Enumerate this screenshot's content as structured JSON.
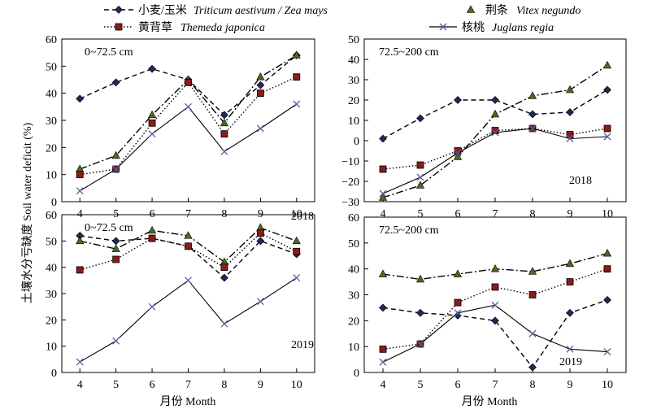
{
  "legend": [
    {
      "series": "wheat_maize",
      "label_cn": "小麦/玉米",
      "label_latin": "Triticum aestivum / Zea mays"
    },
    {
      "series": "vitex",
      "label_cn": "荆条",
      "label_latin": "Vitex negundo"
    },
    {
      "series": "themeda",
      "label_cn": "黄背草",
      "label_latin": "Themeda japonica"
    },
    {
      "series": "juglans",
      "label_cn": "核桃",
      "label_latin": "Juglans regia"
    }
  ],
  "ylabel": "土壤水分亏缺度 Soil water deficit (%)",
  "xlabel": "月份 Month",
  "colors": {
    "axis": "#000000",
    "marker_fill_themeda": "#8b1a1a",
    "marker_fill_vitex": "#4a6b1f",
    "marker_fill_wheat": "#1a2a5a",
    "marker_juglans": "#5a5aa0"
  },
  "chart_data": [
    {
      "id": "p2018_shallow",
      "type": "line",
      "depth": "0~72.5 cm",
      "year": "2018",
      "x": [
        4,
        5,
        6,
        7,
        8,
        9,
        10
      ],
      "ylim": [
        0,
        60
      ],
      "yticks": [
        0,
        10,
        20,
        30,
        40,
        50,
        60
      ],
      "series": [
        {
          "key": "wheat_maize",
          "values": [
            38,
            44,
            49,
            45,
            32,
            43,
            54
          ]
        },
        {
          "key": "vitex",
          "values": [
            12,
            17,
            32,
            45,
            29,
            46,
            54
          ]
        },
        {
          "key": "themeda",
          "values": [
            10,
            12,
            29,
            44,
            25,
            40,
            46
          ]
        },
        {
          "key": "juglans",
          "values": [
            4,
            12,
            25,
            35,
            18.5,
            27,
            36
          ]
        }
      ]
    },
    {
      "id": "p2018_deep",
      "type": "line",
      "depth": "72.5~200 cm",
      "year": "2018",
      "x": [
        4,
        5,
        6,
        7,
        8,
        9,
        10
      ],
      "ylim": [
        -30,
        50
      ],
      "yticks": [
        -30,
        -20,
        -10,
        0,
        10,
        20,
        30,
        40,
        50
      ],
      "series": [
        {
          "key": "wheat_maize",
          "values": [
            1,
            11,
            20,
            20,
            13,
            14,
            25
          ]
        },
        {
          "key": "vitex",
          "values": [
            -28,
            -22,
            -8,
            13,
            22,
            25,
            37
          ]
        },
        {
          "key": "themeda",
          "values": [
            -14,
            -12,
            -5,
            5,
            6,
            3,
            6
          ]
        },
        {
          "key": "juglans",
          "values": [
            -26,
            -18,
            -6,
            4,
            6,
            1,
            2
          ]
        }
      ]
    },
    {
      "id": "p2019_shallow",
      "type": "line",
      "depth": "0~72.5 cm",
      "year": "2019",
      "x": [
        4,
        5,
        6,
        7,
        8,
        9,
        10
      ],
      "ylim": [
        0,
        60
      ],
      "yticks": [
        0,
        10,
        20,
        30,
        40,
        50,
        60
      ],
      "series": [
        {
          "key": "wheat_maize",
          "values": [
            52,
            50,
            51,
            48,
            36,
            50,
            45
          ]
        },
        {
          "key": "vitex",
          "values": [
            50,
            47,
            54,
            52,
            42,
            55,
            50
          ]
        },
        {
          "key": "themeda",
          "values": [
            39,
            43,
            51,
            48,
            40,
            53,
            46
          ]
        },
        {
          "key": "juglans",
          "values": [
            4,
            12,
            25,
            35,
            18.5,
            27,
            36
          ]
        }
      ]
    },
    {
      "id": "p2019_deep",
      "type": "line",
      "depth": "72.5~200 cm",
      "year": "2019",
      "x": [
        4,
        5,
        6,
        7,
        8,
        9,
        10
      ],
      "ylim": [
        0,
        60
      ],
      "yticks": [
        0,
        10,
        20,
        30,
        40,
        50,
        60
      ],
      "series": [
        {
          "key": "wheat_maize",
          "values": [
            25,
            23,
            22,
            20,
            2,
            23,
            28
          ]
        },
        {
          "key": "vitex",
          "values": [
            38,
            36,
            38,
            40,
            39,
            42,
            46
          ]
        },
        {
          "key": "themeda",
          "values": [
            9,
            11,
            27,
            33,
            30,
            35,
            40
          ]
        },
        {
          "key": "juglans",
          "values": [
            4,
            11,
            23,
            26,
            15,
            9,
            8
          ]
        }
      ]
    }
  ]
}
